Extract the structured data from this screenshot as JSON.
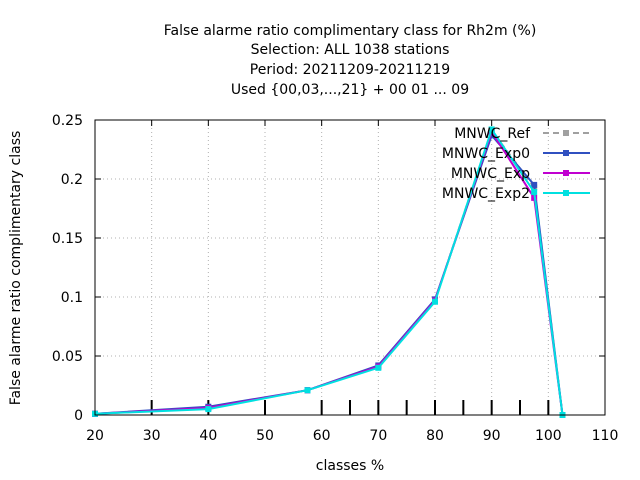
{
  "chart_data": {
    "type": "line",
    "title_lines": [
      "False alarme ratio complimentary class  for Rh2m (%)",
      "Selection: ALL    1038 stations",
      "Period: 20211209-20211219",
      "Used {00,03,...,21} + 00 01 ... 09"
    ],
    "xlabel": "classes %",
    "ylabel": "False alarme ratio complimentary class",
    "xlim": [
      20,
      110
    ],
    "ylim": [
      0,
      0.25
    ],
    "xticks": [
      20,
      30,
      40,
      50,
      60,
      70,
      80,
      90,
      100,
      110
    ],
    "xtick_labels": [
      "20",
      "30",
      "40",
      "50",
      "60",
      "70",
      "80",
      "90",
      "100",
      "110"
    ],
    "yticks": [
      0,
      0.05,
      0.1,
      0.15,
      0.2,
      0.25
    ],
    "ytick_labels": [
      "0",
      "0.05",
      "0.1",
      "0.15",
      "0.2",
      "0.25"
    ],
    "grid": true,
    "legend_position": "top-right",
    "class_markers": [
      30,
      40,
      50,
      60,
      65,
      70,
      75,
      80,
      85,
      90,
      95,
      100
    ],
    "series": [
      {
        "name": "MNWC_Ref",
        "color": "#a0a0a0",
        "dashed": true,
        "x": [
          20,
          40,
          57.5,
          70,
          80,
          90,
          97.5,
          102.5
        ],
        "y": [
          0.001,
          0.006,
          0.021,
          0.041,
          0.097,
          0.241,
          0.193,
          0.0
        ]
      },
      {
        "name": "MNWC_Exp0",
        "color": "#3050c0",
        "dashed": false,
        "x": [
          20,
          40,
          57.5,
          70,
          80,
          90,
          97.5,
          102.5
        ],
        "y": [
          0.001,
          0.007,
          0.021,
          0.042,
          0.098,
          0.237,
          0.195,
          0.0
        ]
      },
      {
        "name": "MNWC_Exp",
        "color": "#c000d0",
        "dashed": false,
        "x": [
          20,
          40,
          57.5,
          70,
          80,
          90,
          97.5,
          102.5
        ],
        "y": [
          0.001,
          0.006,
          0.021,
          0.041,
          0.097,
          0.24,
          0.184,
          0.0
        ]
      },
      {
        "name": "MNWC_Exp2",
        "color": "#00e0e0",
        "dashed": false,
        "x": [
          20,
          40,
          57.5,
          70,
          80,
          90,
          97.5,
          102.5
        ],
        "y": [
          0.001,
          0.005,
          0.021,
          0.04,
          0.096,
          0.242,
          0.189,
          0.0
        ]
      }
    ]
  }
}
